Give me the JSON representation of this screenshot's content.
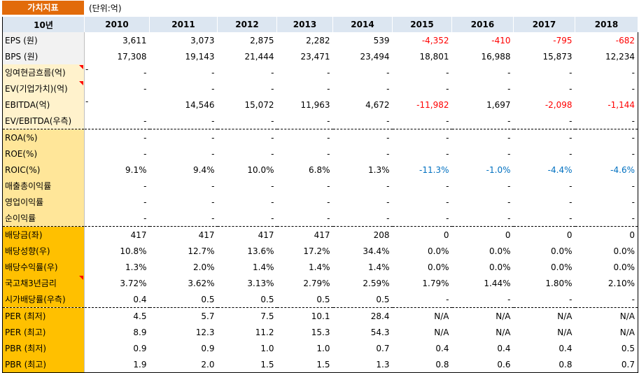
{
  "header": {
    "tab_label": "가치지표",
    "unit_label": "(단위:억)"
  },
  "table": {
    "corner": "10년",
    "years": [
      "2010",
      "2011",
      "2012",
      "2013",
      "2014",
      "2015",
      "2016",
      "2017",
      "2018"
    ],
    "rows": [
      {
        "label": "EPS (원)",
        "group": "g1",
        "sep": false,
        "marker": false,
        "prefix": "",
        "values": [
          "3,611",
          "3,073",
          "2,875",
          "2,282",
          "539",
          "-4,352",
          "-410",
          "-795",
          "-682"
        ]
      },
      {
        "label": "BPS (원)",
        "group": "g1",
        "sep": false,
        "marker": false,
        "prefix": "",
        "values": [
          "17,308",
          "19,143",
          "21,444",
          "23,471",
          "23,494",
          "18,801",
          "16,988",
          "15,873",
          "12,234"
        ]
      },
      {
        "label": "잉여현금흐름(억)",
        "group": "g2",
        "sep": false,
        "marker": true,
        "prefix": "-",
        "values": [
          "-",
          "-",
          "-",
          "-",
          "-",
          "-",
          "-",
          "-",
          "-"
        ]
      },
      {
        "label": "EV(기업가치)(억)",
        "group": "g2",
        "sep": false,
        "marker": true,
        "prefix": "",
        "values": [
          "-",
          "-",
          "-",
          "-",
          "-",
          "-",
          "-",
          "-",
          "-"
        ]
      },
      {
        "label": "EBITDA(억)",
        "group": "g2",
        "sep": false,
        "marker": false,
        "prefix": "-",
        "values": [
          "",
          "14,546",
          "15,072",
          "11,963",
          "4,672",
          "-11,982",
          "1,697",
          "-2,098",
          "-1,144"
        ]
      },
      {
        "label": "EV/EBITDA(우측)",
        "group": "g2",
        "sep": false,
        "marker": false,
        "prefix": "",
        "values": [
          "-",
          "-",
          "-",
          "-",
          "-",
          "-",
          "-",
          "-",
          "-"
        ]
      },
      {
        "label": "ROA(%)",
        "group": "g3",
        "sep": true,
        "marker": false,
        "prefix": "",
        "values": [
          "-",
          "-",
          "-",
          "-",
          "-",
          "-",
          "-",
          "-",
          "-"
        ]
      },
      {
        "label": "ROE(%)",
        "group": "g3",
        "sep": false,
        "marker": false,
        "prefix": "",
        "values": [
          "-",
          "-",
          "-",
          "-",
          "-",
          "-",
          "-",
          "-",
          "-"
        ]
      },
      {
        "label": "ROIC(%)",
        "group": "g3",
        "sep": false,
        "marker": false,
        "prefix": "",
        "values": [
          "9.1%",
          "9.4%",
          "10.0%",
          "6.8%",
          "1.3%",
          "-11.3%",
          "-1.0%",
          "-4.4%",
          "-4.6%"
        ]
      },
      {
        "label": "매출총이익률",
        "group": "g3",
        "sep": false,
        "marker": false,
        "prefix": "",
        "values": [
          "-",
          "-",
          "-",
          "-",
          "-",
          "-",
          "-",
          "-",
          "-"
        ]
      },
      {
        "label": "영업이익률",
        "group": "g3",
        "sep": false,
        "marker": false,
        "prefix": "",
        "values": [
          "-",
          "-",
          "-",
          "-",
          "-",
          "-",
          "-",
          "-",
          "-"
        ]
      },
      {
        "label": "순이익률",
        "group": "g3",
        "sep": false,
        "marker": false,
        "prefix": "",
        "values": [
          "-",
          "-",
          "-",
          "-",
          "-",
          "-",
          "-",
          "-",
          "-"
        ]
      },
      {
        "label": "배당금(좌)",
        "group": "g4",
        "sep": true,
        "marker": false,
        "prefix": "",
        "values": [
          "417",
          "417",
          "417",
          "417",
          "208",
          "0",
          "0",
          "0",
          "0"
        ]
      },
      {
        "label": "배당성향(우)",
        "group": "g4",
        "sep": false,
        "marker": false,
        "prefix": "",
        "values": [
          "10.8%",
          "12.7%",
          "13.6%",
          "17.2%",
          "34.4%",
          "0.0%",
          "0.0%",
          "0.0%",
          "0.0%"
        ]
      },
      {
        "label": "배당수익률(우)",
        "group": "g4",
        "sep": false,
        "marker": false,
        "prefix": "",
        "values": [
          "1.3%",
          "2.0%",
          "1.4%",
          "1.4%",
          "1.4%",
          "0.0%",
          "0.0%",
          "0.0%",
          "0.0%"
        ]
      },
      {
        "label": "국고채3년금리",
        "group": "g4",
        "sep": false,
        "marker": true,
        "prefix": "",
        "values": [
          "3.72%",
          "3.62%",
          "3.13%",
          "2.79%",
          "2.59%",
          "1.79%",
          "1.44%",
          "1.80%",
          "2.10%"
        ]
      },
      {
        "label": "시가배당률(우측)",
        "group": "g4",
        "sep": false,
        "marker": false,
        "prefix": "",
        "values": [
          "0.4",
          "0.5",
          "0.5",
          "0.5",
          "0.5",
          "-",
          "-",
          "-",
          "-"
        ]
      },
      {
        "label": "PER (최저)",
        "group": "g4",
        "sep": true,
        "marker": false,
        "prefix": "",
        "values": [
          "4.5",
          "5.7",
          "7.5",
          "10.1",
          "28.4",
          "N/A",
          "N/A",
          "N/A",
          "N/A"
        ]
      },
      {
        "label": "PER (최고)",
        "group": "g4",
        "sep": false,
        "marker": false,
        "prefix": "",
        "values": [
          "8.9",
          "12.3",
          "11.2",
          "15.3",
          "54.3",
          "N/A",
          "N/A",
          "N/A",
          "N/A"
        ]
      },
      {
        "label": "PBR (최저)",
        "group": "g4",
        "sep": false,
        "marker": false,
        "prefix": "",
        "values": [
          "0.9",
          "0.9",
          "1.0",
          "1.0",
          "0.7",
          "0.4",
          "0.4",
          "0.4",
          "0.5"
        ]
      },
      {
        "label": "PBR (최고)",
        "group": "g4",
        "sep": false,
        "marker": false,
        "prefix": "",
        "values": [
          "1.9",
          "2.0",
          "1.5",
          "1.5",
          "1.3",
          "0.8",
          "0.6",
          "0.8",
          "0.7"
        ]
      }
    ]
  },
  "colors": {
    "tab": "#e26b0a",
    "header": "#dce6f1",
    "negative": "#ff0000",
    "negative_percent": "#0070c0"
  }
}
